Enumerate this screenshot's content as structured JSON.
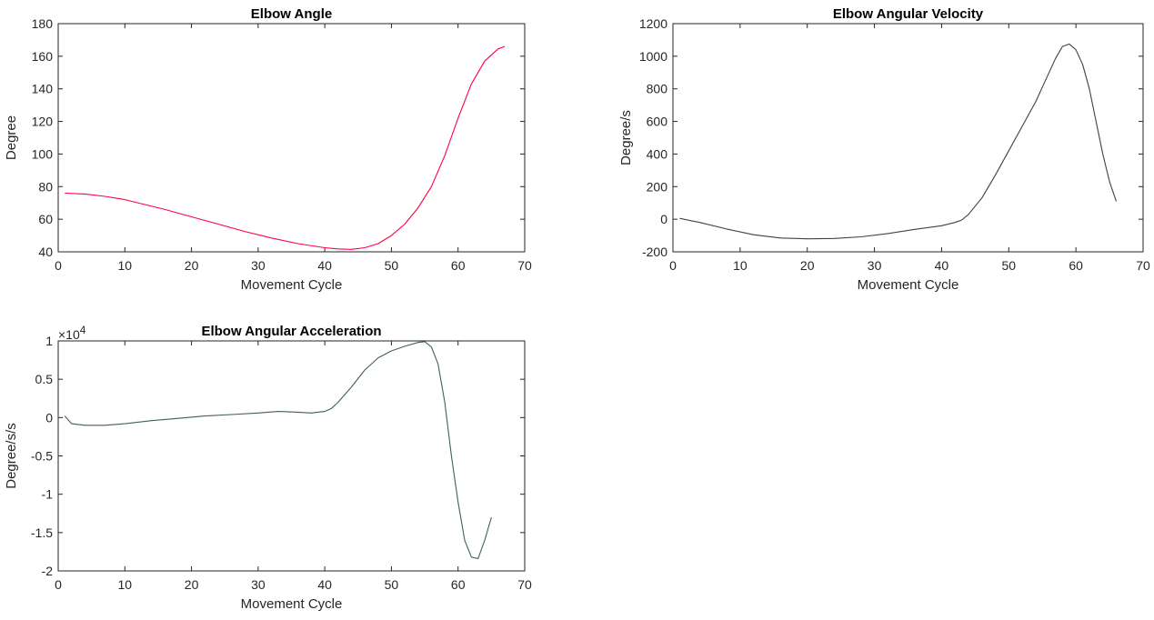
{
  "chart_data": [
    {
      "type": "line",
      "title": "Elbow Angle",
      "xlabel": "Movement Cycle",
      "ylabel": "Degree",
      "xlim": [
        0,
        70
      ],
      "ylim": [
        40,
        180
      ],
      "xticks": [
        0,
        10,
        20,
        30,
        40,
        50,
        60,
        70
      ],
      "yticks": [
        40,
        60,
        80,
        100,
        120,
        140,
        160,
        180
      ],
      "xtick_labels": [
        "0",
        "10",
        "20",
        "30",
        "40",
        "50",
        "60",
        "70"
      ],
      "ytick_labels": [
        "40",
        "60",
        "80",
        "100",
        "120",
        "140",
        "160",
        "180"
      ],
      "exponent_label": "",
      "grid": false,
      "series": [
        {
          "color": "#ff0040",
          "x": [
            1,
            4,
            7,
            10,
            13,
            16,
            20,
            24,
            28,
            32,
            36,
            40,
            42,
            44,
            46,
            48,
            50,
            52,
            54,
            56,
            58,
            60,
            62,
            64,
            66,
            67
          ],
          "y": [
            76,
            75.5,
            74,
            72,
            69,
            66,
            61.5,
            57,
            52.5,
            48.5,
            45,
            42.5,
            41.8,
            41.5,
            42.5,
            45,
            50,
            57,
            67,
            80,
            99,
            122,
            143,
            157,
            164.5,
            166
          ]
        }
      ]
    },
    {
      "type": "line",
      "title": "Elbow Angular Velocity",
      "xlabel": "Movement Cycle",
      "ylabel": "Degree/s",
      "xlim": [
        0,
        70
      ],
      "ylim": [
        -200,
        1200
      ],
      "xticks": [
        0,
        10,
        20,
        30,
        40,
        50,
        60,
        70
      ],
      "yticks": [
        -200,
        0,
        200,
        400,
        600,
        800,
        1000,
        1200
      ],
      "xtick_labels": [
        "0",
        "10",
        "20",
        "30",
        "40",
        "50",
        "60",
        "70"
      ],
      "ytick_labels": [
        "-200",
        "0",
        "200",
        "400",
        "600",
        "800",
        "1000",
        "1200"
      ],
      "exponent_label": "",
      "grid": false,
      "series": [
        {
          "color": "#404040",
          "x": [
            1,
            4,
            8,
            12,
            16,
            20,
            24,
            28,
            32,
            36,
            40,
            42,
            43,
            44,
            46,
            48,
            50,
            52,
            54,
            56,
            57,
            58,
            59,
            60,
            61,
            62,
            63,
            64,
            65,
            66
          ],
          "y": [
            5,
            -20,
            -60,
            -95,
            -115,
            -120,
            -118,
            -108,
            -88,
            -62,
            -40,
            -20,
            -5,
            30,
            130,
            270,
            420,
            570,
            720,
            900,
            990,
            1060,
            1075,
            1040,
            950,
            800,
            600,
            400,
            230,
            110
          ]
        }
      ]
    },
    {
      "type": "line",
      "title": "Elbow Angular Acceleration",
      "xlabel": "Movement Cycle",
      "ylabel": "Degree/s/s",
      "xlim": [
        0,
        70
      ],
      "ylim": [
        -2,
        1
      ],
      "xticks": [
        0,
        10,
        20,
        30,
        40,
        50,
        60,
        70
      ],
      "yticks": [
        -2,
        -1.5,
        -1,
        -0.5,
        0,
        0.5,
        1
      ],
      "xtick_labels": [
        "0",
        "10",
        "20",
        "30",
        "40",
        "50",
        "60",
        "70"
      ],
      "ytick_labels": [
        "-2",
        "-1.5",
        "-1",
        "-0.5",
        "0",
        "0.5",
        "1"
      ],
      "exponent_label": "×10",
      "exponent_power": "4",
      "grid": false,
      "series": [
        {
          "color": "#406060",
          "x": [
            1,
            2,
            4,
            7,
            10,
            14,
            18,
            22,
            26,
            30,
            33,
            36,
            38,
            40,
            41,
            42,
            44,
            46,
            48,
            50,
            52,
            54,
            55,
            56,
            57,
            58,
            59,
            60,
            61,
            62,
            63,
            64,
            65
          ],
          "y": [
            0.02,
            -0.08,
            -0.1,
            -0.1,
            -0.08,
            -0.04,
            -0.01,
            0.02,
            0.04,
            0.06,
            0.08,
            0.07,
            0.06,
            0.08,
            0.12,
            0.2,
            0.4,
            0.62,
            0.78,
            0.87,
            0.93,
            0.98,
            0.99,
            0.92,
            0.7,
            0.2,
            -0.5,
            -1.1,
            -1.6,
            -1.82,
            -1.84,
            -1.6,
            -1.3
          ]
        }
      ]
    }
  ]
}
